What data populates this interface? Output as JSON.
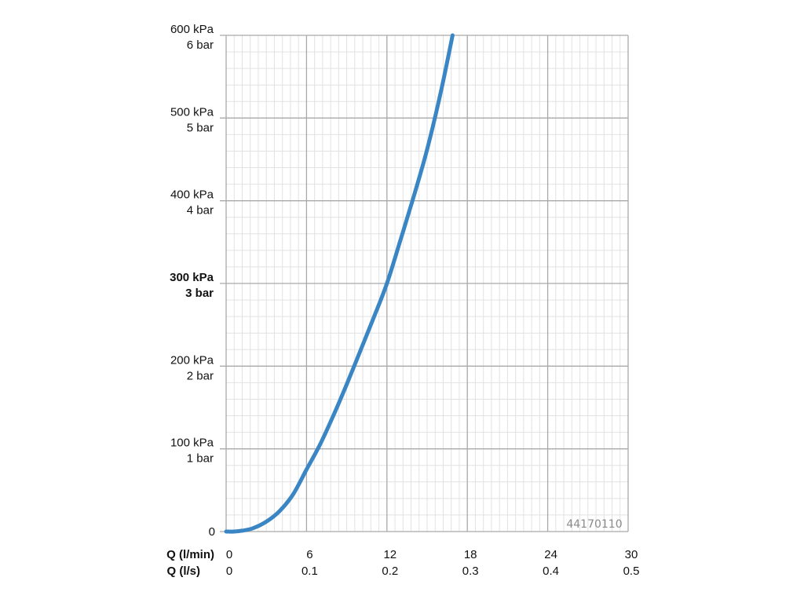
{
  "chart_data": {
    "type": "line",
    "colors": {
      "curve": "#3a86c4",
      "major_grid": "#a9a9a9",
      "minor_grid": "#e2e2e2",
      "code_label": "#8a8a8a"
    },
    "grid": true,
    "x_axis": {
      "unit_labels": [
        "Q (l/min)",
        "Q (l/s)"
      ],
      "range": [
        0,
        30
      ],
      "ticks": [
        {
          "value": 0,
          "line1": "0",
          "line2": "0"
        },
        {
          "value": 6,
          "line1": "6",
          "line2": "0.1"
        },
        {
          "value": 12,
          "line1": "12",
          "line2": "0.2"
        },
        {
          "value": 18,
          "line1": "18",
          "line2": "0.3"
        },
        {
          "value": 24,
          "line1": "24",
          "line2": "0.4"
        },
        {
          "value": 30,
          "line1": "30",
          "line2": "0.5"
        }
      ]
    },
    "y_axis": {
      "range": [
        0,
        600
      ],
      "ticks": [
        {
          "value": 0,
          "line1": "0",
          "line2": "",
          "bold": false
        },
        {
          "value": 100,
          "line1": "100 kPa",
          "line2": "1 bar",
          "bold": false
        },
        {
          "value": 200,
          "line1": "200 kPa",
          "line2": "2 bar",
          "bold": false
        },
        {
          "value": 300,
          "line1": "300 kPa",
          "line2": "3 bar",
          "bold": true
        },
        {
          "value": 400,
          "line1": "400 kPa",
          "line2": "4 bar",
          "bold": false
        },
        {
          "value": 500,
          "line1": "500 kPa",
          "line2": "5 bar",
          "bold": false
        },
        {
          "value": 600,
          "line1": "600 kPa",
          "line2": "6 bar",
          "bold": false
        }
      ]
    },
    "series": [
      {
        "x": [
          0,
          0.6,
          1.2,
          2,
          3,
          4,
          5,
          6,
          7,
          8,
          9,
          10,
          11,
          12,
          13,
          14,
          15,
          16,
          16.9
        ],
        "y": [
          0,
          0,
          1,
          4,
          12,
          25,
          45,
          75,
          105,
          140,
          178,
          218,
          258,
          300,
          352,
          405,
          462,
          530,
          600
        ]
      }
    ],
    "annotations": [
      "44170110"
    ]
  }
}
